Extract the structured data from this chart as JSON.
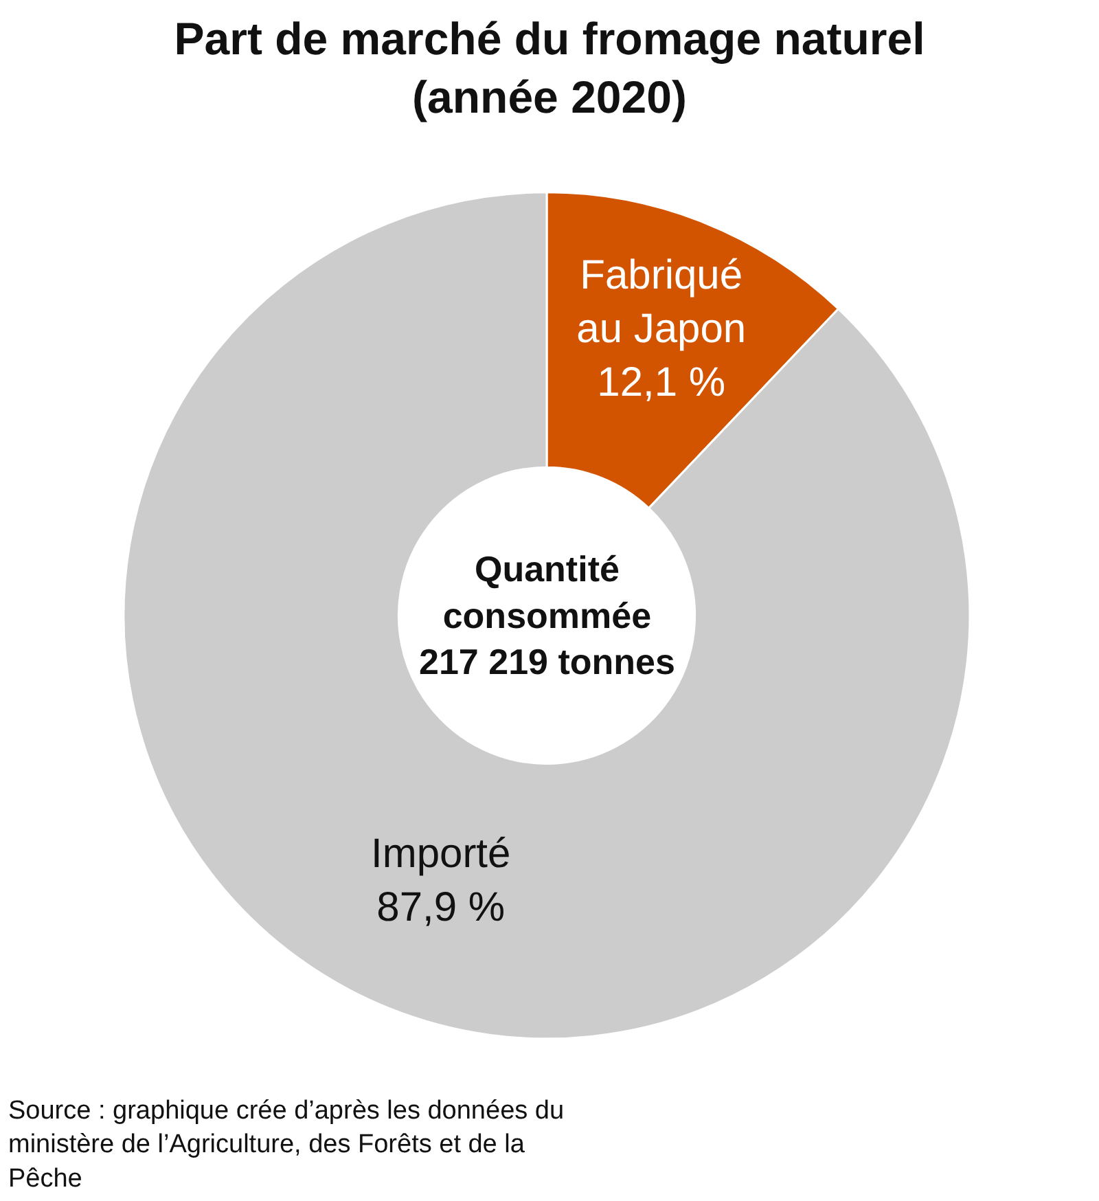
{
  "chart_data": {
    "type": "donut",
    "title": "Part de marché du fromage naturel (année 2020)",
    "categories": [
      "Fabriqué au Japon",
      "Importé"
    ],
    "values": [
      12.1,
      87.9
    ],
    "value_labels": [
      "12,1 %",
      "87,9 %"
    ],
    "colors": [
      "#d35400",
      "#cccccc"
    ],
    "annotations": [
      "Quantité consommée 217 219 tonnes",
      "Source : graphique crée d’après les données du ministère de l’Agriculture, des Forêts et de la Pêche"
    ],
    "legend": false
  }
}
